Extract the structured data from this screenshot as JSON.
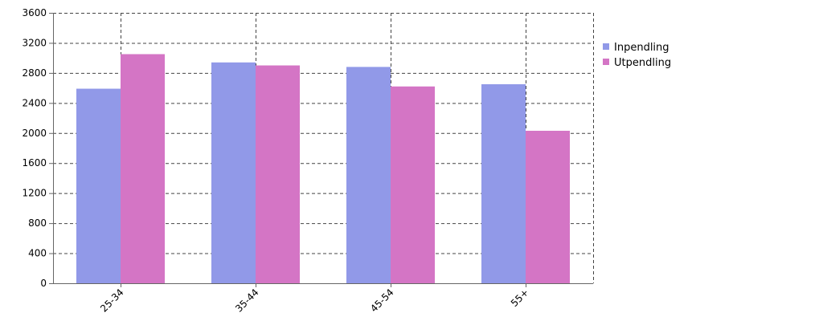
{
  "chart_data": {
    "type": "bar",
    "title": "",
    "xlabel": "",
    "ylabel": "",
    "categories": [
      "25-34",
      "35-44",
      "45-54",
      "55+"
    ],
    "series": [
      {
        "name": "Inpendling",
        "color": "#9199e8",
        "values": [
          2590,
          2940,
          2880,
          2650
        ]
      },
      {
        "name": "Utpendling",
        "color": "#d475c5",
        "values": [
          3050,
          2900,
          2620,
          2030
        ]
      }
    ],
    "ylim": [
      0,
      3600
    ],
    "yticks": [
      "0",
      "400",
      "800",
      "1200",
      "1600",
      "2000",
      "2400",
      "2800",
      "3200",
      "3600"
    ],
    "grid": true,
    "legend_position": "top-right"
  }
}
